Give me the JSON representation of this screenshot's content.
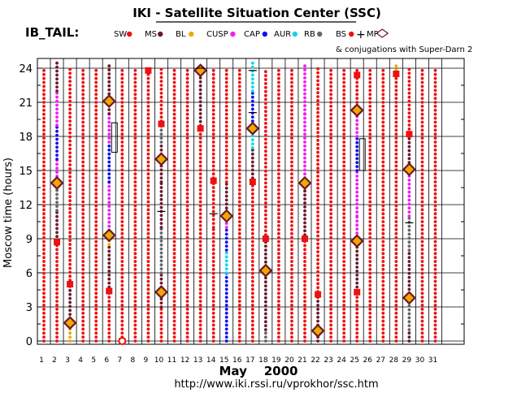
{
  "chart_data": {
    "type": "scatter",
    "title": "IKI - Satellite Situation Center (SSC)",
    "subtitle": "IB_TAIL:",
    "xlabel": "May    2000",
    "ylabel": "Moscow time (hours)",
    "footer": "http://www.iki.rssi.ru/vprokhor/ssc.htm",
    "conjugation_note": "& conjugations with Super-Darn 2",
    "xlim": [
      1,
      31
    ],
    "ylim": [
      0,
      24
    ],
    "x_ticks": [
      "1",
      "2",
      "3",
      "4",
      "5",
      "6",
      "7",
      "8",
      "9",
      "10",
      "11",
      "12",
      "13",
      "14",
      "15",
      "16",
      "17",
      "18",
      "19",
      "20",
      "21",
      "22",
      "23",
      "24",
      "25",
      "26",
      "27",
      "28",
      "29",
      "30",
      "31"
    ],
    "y_ticks": [
      "0",
      "3",
      "6",
      "9",
      "12",
      "15",
      "18",
      "21",
      "24"
    ],
    "legend": [
      {
        "label": "SW",
        "color": "#ee1111"
      },
      {
        "label": "MS",
        "color": "#6b1a2a"
      },
      {
        "label": "BL",
        "color": "#f0a800"
      },
      {
        "label": "CUSP",
        "color": "#ee22ee"
      },
      {
        "label": "CAP",
        "color": "#1010ee"
      },
      {
        "label": "AUR",
        "color": "#10d8e8"
      },
      {
        "label": "RB",
        "color": "#666666"
      },
      {
        "label": "BS",
        "color": "#ee1111"
      },
      {
        "label": "MP",
        "color": "#6b1a2a"
      }
    ],
    "columns": [
      {
        "day": 1,
        "segments": [
          [
            0,
            24,
            "SW"
          ]
        ]
      },
      {
        "day": 2,
        "segments": [
          [
            0,
            8.5,
            "SW"
          ],
          [
            8.5,
            11.5,
            "MS"
          ],
          [
            11.5,
            14.5,
            "RB"
          ],
          [
            14.5,
            16,
            "CUSP"
          ],
          [
            16,
            19,
            "CAP"
          ],
          [
            19,
            22,
            "CUSP"
          ],
          [
            22,
            24.5,
            "MS"
          ]
        ]
      },
      {
        "day": 3,
        "segments": [
          [
            0,
            1.2,
            "BL"
          ],
          [
            1.2,
            2,
            "RB"
          ],
          [
            2,
            5,
            "MS"
          ],
          [
            5,
            24,
            "SW"
          ]
        ]
      },
      {
        "day": 4,
        "segments": [
          [
            0,
            24,
            "SW"
          ]
        ]
      },
      {
        "day": 5,
        "segments": [
          [
            0,
            24,
            "SW"
          ]
        ]
      },
      {
        "day": 6,
        "segments": [
          [
            0,
            4.4,
            "SW"
          ],
          [
            4.4,
            8.5,
            "MS"
          ],
          [
            8.5,
            9.4,
            "BL"
          ],
          [
            9.4,
            14,
            "CUSP"
          ],
          [
            14,
            17.5,
            "CAP"
          ],
          [
            17.5,
            20,
            "CUSP"
          ],
          [
            20,
            24.5,
            "MS"
          ]
        ]
      },
      {
        "day": 7,
        "segments": [
          [
            0,
            24,
            "SW"
          ]
        ]
      },
      {
        "day": 8,
        "segments": [
          [
            0,
            24,
            "SW"
          ]
        ]
      },
      {
        "day": 9,
        "segments": [
          [
            0,
            24,
            "SW"
          ]
        ]
      },
      {
        "day": 10,
        "segments": [
          [
            0,
            3,
            "SW"
          ],
          [
            3,
            6,
            "MS"
          ],
          [
            6,
            10,
            "RB"
          ],
          [
            10,
            14,
            "MS"
          ],
          [
            14,
            17.5,
            "MS"
          ],
          [
            17.5,
            19,
            "RB"
          ],
          [
            19,
            24,
            "SW"
          ]
        ]
      },
      {
        "day": 11,
        "segments": [
          [
            0,
            24,
            "SW"
          ]
        ]
      },
      {
        "day": 12,
        "segments": [
          [
            0,
            24,
            "SW"
          ]
        ]
      },
      {
        "day": 13,
        "segments": [
          [
            0,
            18.6,
            "SW"
          ],
          [
            18.6,
            24.5,
            "MS"
          ]
        ]
      },
      {
        "day": 14,
        "segments": [
          [
            0,
            10,
            "SW"
          ],
          [
            10,
            14,
            "SW"
          ],
          [
            14,
            24,
            "SW"
          ]
        ]
      },
      {
        "day": 15,
        "segments": [
          [
            0,
            6,
            "CAP"
          ],
          [
            6,
            8,
            "AUR"
          ],
          [
            8,
            10,
            "CAP"
          ],
          [
            10,
            11,
            "CUSP"
          ],
          [
            11,
            14,
            "MS"
          ],
          [
            14,
            24,
            "SW"
          ]
        ]
      },
      {
        "day": 16,
        "segments": [
          [
            0,
            24,
            "SW"
          ]
        ]
      },
      {
        "day": 17,
        "segments": [
          [
            0,
            14,
            "SW"
          ],
          [
            14,
            17,
            "MS"
          ],
          [
            17,
            19,
            "AUR"
          ],
          [
            19,
            22,
            "CAP"
          ],
          [
            22,
            24.5,
            "AUR"
          ]
        ]
      },
      {
        "day": 18,
        "segments": [
          [
            0,
            1,
            "RB"
          ],
          [
            1,
            9,
            "MS"
          ],
          [
            9,
            24,
            "SW"
          ]
        ]
      },
      {
        "day": 19,
        "segments": [
          [
            0,
            24,
            "SW"
          ]
        ]
      },
      {
        "day": 20,
        "segments": [
          [
            0,
            24,
            "SW"
          ]
        ]
      },
      {
        "day": 21,
        "segments": [
          [
            0,
            9,
            "SW"
          ],
          [
            9,
            14,
            "MS"
          ],
          [
            14,
            20,
            "CUSP"
          ],
          [
            20,
            24.5,
            "CUSP"
          ]
        ]
      },
      {
        "day": 22,
        "segments": [
          [
            0,
            4,
            "MS"
          ],
          [
            4,
            24,
            "SW"
          ]
        ]
      },
      {
        "day": 23,
        "segments": [
          [
            0,
            24,
            "SW"
          ]
        ]
      },
      {
        "day": 24,
        "segments": [
          [
            0,
            24,
            "SW"
          ]
        ]
      },
      {
        "day": 25,
        "segments": [
          [
            0,
            4.4,
            "SW"
          ],
          [
            4.4,
            8.8,
            "MS"
          ],
          [
            8.8,
            11,
            "CUSP"
          ],
          [
            11,
            15,
            "CUSP"
          ],
          [
            15,
            18,
            "CAP"
          ],
          [
            18,
            20.3,
            "CUSP"
          ],
          [
            20.3,
            24,
            "SW"
          ]
        ]
      },
      {
        "day": 26,
        "segments": [
          [
            0,
            24,
            "SW"
          ]
        ]
      },
      {
        "day": 27,
        "segments": [
          [
            0,
            24,
            "SW"
          ]
        ]
      },
      {
        "day": 28,
        "segments": [
          [
            0,
            23.5,
            "SW"
          ],
          [
            23.5,
            24.5,
            "BL"
          ]
        ]
      },
      {
        "day": 29,
        "segments": [
          [
            0,
            1,
            "MS"
          ],
          [
            1,
            3.5,
            "RB"
          ],
          [
            3.5,
            8,
            "MS"
          ],
          [
            8,
            11,
            "RB"
          ],
          [
            11,
            15,
            "CUSP"
          ],
          [
            15,
            18.3,
            "MS"
          ],
          [
            18.3,
            24,
            "SW"
          ]
        ]
      },
      {
        "day": 30,
        "segments": [
          [
            0,
            24,
            "SW"
          ]
        ]
      },
      {
        "day": 31,
        "segments": [
          [
            0,
            24,
            "SW"
          ]
        ]
      }
    ],
    "bow_shock_crossings": [
      [
        2,
        8.7
      ],
      [
        3,
        5
      ],
      [
        6,
        4.4
      ],
      [
        7,
        0
      ],
      [
        9,
        23.8
      ],
      [
        10,
        19.1
      ],
      [
        13,
        18.7
      ],
      [
        14,
        14.1
      ],
      [
        17,
        14
      ],
      [
        18,
        9
      ],
      [
        21,
        9
      ],
      [
        22,
        4.1
      ],
      [
        25,
        23.4
      ],
      [
        25,
        4.3
      ],
      [
        28,
        23.5
      ],
      [
        29,
        18.2
      ]
    ],
    "superdarn_conjugations": [
      [
        2,
        13.9
      ],
      [
        3,
        1.6
      ],
      [
        6,
        21.1
      ],
      [
        6,
        9.3
      ],
      [
        10,
        16
      ],
      [
        10,
        4.3
      ],
      [
        13,
        23.8
      ],
      [
        15,
        11
      ],
      [
        17,
        18.7
      ],
      [
        18,
        6.2
      ],
      [
        21,
        13.9
      ],
      [
        22,
        0.9
      ],
      [
        25,
        20.3
      ],
      [
        25,
        8.8
      ],
      [
        29,
        15.1
      ],
      [
        29,
        3.8
      ]
    ],
    "horizontal_markers": [
      [
        10,
        11.4
      ],
      [
        17,
        20.1
      ],
      [
        17,
        23.8
      ],
      [
        29,
        10.4
      ],
      [
        14,
        11.2
      ],
      [
        13,
        24
      ]
    ],
    "boxes": [
      [
        6,
        16.6,
        19.2
      ],
      [
        25,
        15,
        17.8
      ]
    ]
  },
  "colors": {
    "background": "#ffffff",
    "axes": "#000000"
  }
}
